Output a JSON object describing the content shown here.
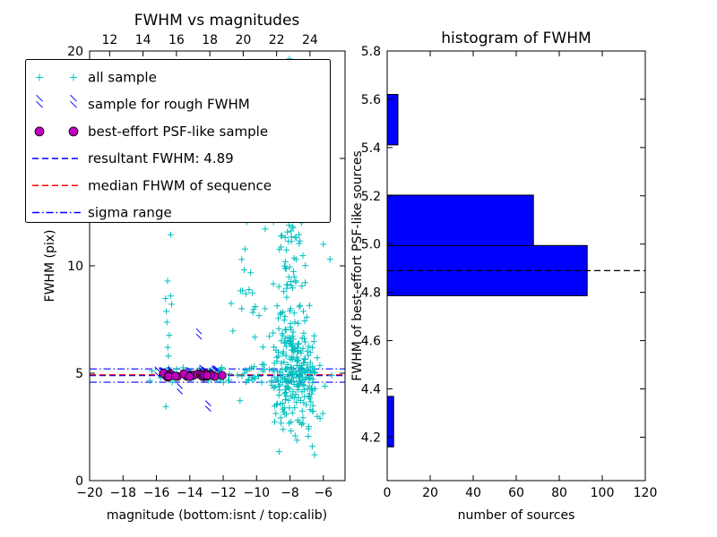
{
  "figure": {
    "background": "#ffffff"
  },
  "colors": {
    "all_sample": "#00bfbf",
    "rough_sample": "#0000ff",
    "psf_sample": "#bf00bf",
    "median_line": "#ff0000",
    "resultant_line": "#0000ff",
    "histogram_bar": "#0000ff",
    "marker_line": "#000000"
  },
  "chart_data": [
    {
      "type": "scatter",
      "title": "FWHM vs magnitudes",
      "xlabel": "magnitude (bottom:isnt / top:calib)",
      "ylabel": "FWHM (pix)",
      "xlim": [
        -20,
        -4.7
      ],
      "ylim": [
        0,
        20
      ],
      "bottom_ticks": {
        "values": [
          -20,
          -18,
          -16,
          -14,
          -12,
          -10,
          -8,
          -6
        ],
        "labels": [
          "−20",
          "−18",
          "−16",
          "−14",
          "−12",
          "−10",
          "−8",
          "−6"
        ]
      },
      "top_ticks": {
        "values": [
          -18.8,
          -16.8,
          -14.8,
          -12.8,
          -10.8,
          -8.8,
          -6.8
        ],
        "labels": [
          "12",
          "14",
          "16",
          "18",
          "20",
          "22",
          "24"
        ]
      },
      "y_ticks": {
        "values": [
          0,
          5,
          10,
          15,
          20
        ],
        "labels": [
          "0",
          "5",
          "10",
          "15",
          "20"
        ]
      },
      "series": [
        {
          "name": "all sample",
          "marker": "+",
          "color": "#00bfbf",
          "clusters": [
            {
              "type": "uniform",
              "x": [
                -16.4,
                -6.3
              ],
              "y": [
                4.55,
                5.35
              ],
              "n": 90
            },
            {
              "type": "normal",
              "cx": -7.95,
              "cy": 5.3,
              "sx": 0.6,
              "sy": 1.3,
              "n": 150
            },
            {
              "type": "normal",
              "cx": -7.9,
              "cy": 8.8,
              "sx": 0.55,
              "sy": 2.2,
              "n": 70
            },
            {
              "type": "normal",
              "cx": -8.1,
              "cy": 14.5,
              "sx": 0.8,
              "sy": 2.6,
              "n": 35
            },
            {
              "type": "normal",
              "cx": -7.6,
              "cy": 3.3,
              "sx": 0.8,
              "sy": 0.7,
              "n": 35
            },
            {
              "type": "normal",
              "cx": -7.0,
              "cy": 4.8,
              "sx": 0.35,
              "sy": 0.9,
              "n": 40
            },
            {
              "type": "normal",
              "cx": -15.35,
              "cy": 8.2,
              "sx": 0.2,
              "sy": 2.8,
              "n": 13
            },
            {
              "type": "normal",
              "cx": -10.1,
              "cy": 8.3,
              "sx": 0.7,
              "sy": 1.7,
              "n": 22
            },
            {
              "type": "normal",
              "cx": -10.6,
              "cy": 17.3,
              "sx": 1.1,
              "sy": 1.9,
              "n": 10
            },
            {
              "type": "normal",
              "cx": -9.2,
              "cy": 12.3,
              "sx": 0.7,
              "sy": 1.4,
              "n": 12
            }
          ],
          "points": [
            [
              -5.6,
              10.3
            ],
            [
              -6.0,
              11.0
            ],
            [
              -15.15,
              12.9
            ],
            [
              -6.2,
              2.9
            ],
            [
              -5.9,
              4.4
            ],
            [
              -5.5,
              4.9
            ]
          ]
        },
        {
          "name": "sample for rough FWHM",
          "marker": "x",
          "color": "#0000ff",
          "clusters": [
            {
              "type": "normal_band",
              "x": [
                -16.0,
                -12.3
              ],
              "cy": 4.88,
              "sy": 0.07,
              "n": 18
            }
          ],
          "points": [
            [
              -13.45,
              6.7
            ],
            [
              -12.9,
              3.35
            ],
            [
              -14.6,
              4.15
            ]
          ]
        },
        {
          "name": "best-effort PSF-like sample",
          "marker": "o",
          "color": "#bf00bf",
          "clusters": [
            {
              "type": "normal_band",
              "x": [
                -15.85,
                -11.85
              ],
              "cy": 4.9,
              "sy": 0.05,
              "n": 30
            }
          ],
          "points": []
        }
      ],
      "hlines": [
        {
          "y": 4.89,
          "color": "#0000ff",
          "dash": "dashed",
          "meaning": "resultant FWHM"
        },
        {
          "y": 4.93,
          "color": "#ff0000",
          "dash": "dashed",
          "meaning": "median FHWM of sequence"
        },
        {
          "y": 4.58,
          "color": "#0000ff",
          "dash": "dashdot",
          "meaning": "sigma range low"
        },
        {
          "y": 5.2,
          "color": "#0000ff",
          "dash": "dashdot",
          "meaning": "sigma range high"
        }
      ],
      "legend": {
        "entries": [
          {
            "label": "all sample",
            "swatch": "plus",
            "color": "#00bfbf"
          },
          {
            "label": "sample for rough FWHM",
            "swatch": "x",
            "color": "#0000ff"
          },
          {
            "label": "best-effort PSF-like sample",
            "swatch": "circle",
            "color": "#bf00bf"
          },
          {
            "label": "resultant FWHM: 4.89",
            "swatch": "dashed",
            "color": "#0000ff"
          },
          {
            "label": "median FHWM of sequence",
            "swatch": "dashed",
            "color": "#ff0000"
          },
          {
            "label": "sigma range",
            "swatch": "dashdot",
            "color": "#0000ff"
          }
        ]
      }
    },
    {
      "type": "bar",
      "orientation": "horizontal",
      "title": "histogram of FWHM",
      "xlabel": "number of sources",
      "ylabel": "FWHM of best-effort PSF-like sources",
      "xlim": [
        0,
        120
      ],
      "ylim": [
        4.02,
        5.8
      ],
      "x_ticks": {
        "values": [
          0,
          20,
          40,
          60,
          80,
          100,
          120
        ],
        "labels": [
          "0",
          "20",
          "40",
          "60",
          "80",
          "100",
          "120"
        ]
      },
      "y_ticks": {
        "values": [
          4.2,
          4.4,
          4.6,
          4.8,
          5.0,
          5.2,
          5.4,
          5.6,
          5.8
        ],
        "labels": [
          "4.2",
          "4.4",
          "4.6",
          "4.8",
          "5.0",
          "5.2",
          "5.4",
          "5.6",
          "5.8"
        ]
      },
      "bin_edges": [
        4.16,
        4.369,
        4.577,
        4.786,
        4.994,
        5.203,
        5.411,
        5.62
      ],
      "counts": [
        3,
        0,
        0,
        93,
        68,
        0,
        5
      ],
      "bar_color": "#0000ff",
      "marker_line": {
        "y": 4.89,
        "color": "#000000",
        "dash": "dashed"
      }
    }
  ]
}
